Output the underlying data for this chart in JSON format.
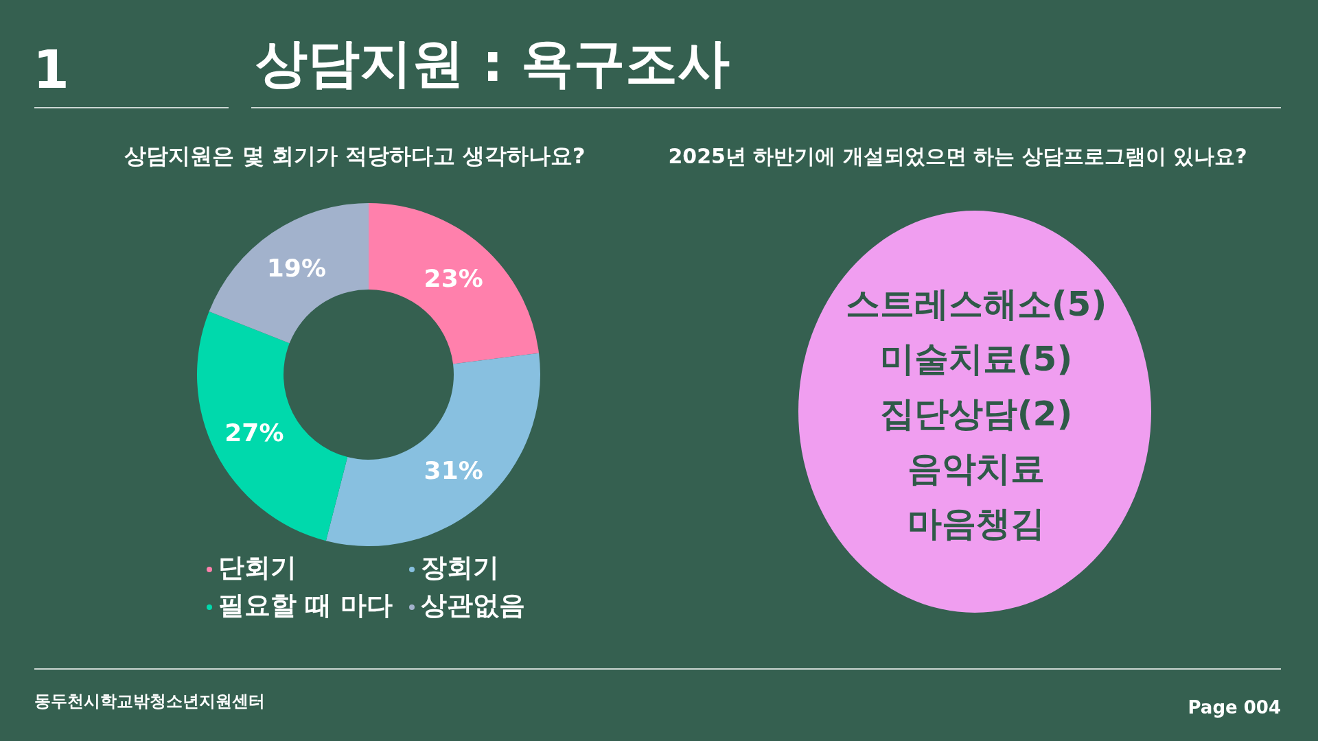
{
  "chart_data": [
    {
      "type": "donut",
      "title": "상담지원은 몇 회기가 적당하다고 생각하나요?",
      "categories": [
        "단회기",
        "장회기",
        "필요할 때 마다",
        "상관없음"
      ],
      "values": [
        23,
        31,
        27,
        19
      ],
      "colors": [
        "#ff80ac",
        "#88c0e0",
        "#00d9ac",
        "#a2b2cc"
      ],
      "value_labels": [
        "23%",
        "31%",
        "27%",
        "19%"
      ],
      "legend": "bottom",
      "annotations": [
        "1",
        "상담지원 : 욕구조사",
        "동두천시학교밖청소년지원센터",
        "Page 004"
      ]
    },
    {
      "type": "other",
      "title": "2025년 하반기에 개설되었으면 하는 상담프로그램이 있나요?",
      "annotations": [
        "스트레스해소(5)",
        "미술치료(5)",
        "집단상담(2)",
        "음악치료",
        "마음챙김"
      ]
    }
  ]
}
